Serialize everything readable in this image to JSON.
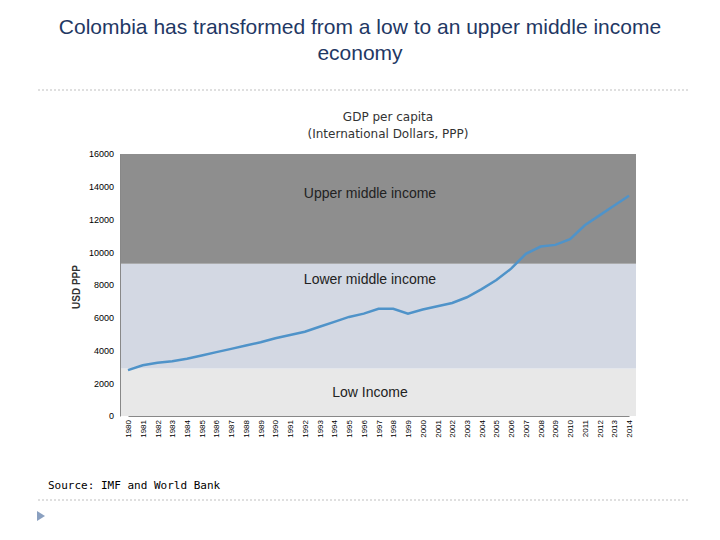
{
  "heading": "Colombia has transformed from a low to an upper middle income economy",
  "source": "Source: IMF and World Bank",
  "chart_data": {
    "type": "line",
    "title": "GDP per capita",
    "subtitle": "(International Dollars, PPP)",
    "y_label": "USD PPP",
    "categories": [
      "1980",
      "1981",
      "1982",
      "1983",
      "1984",
      "1985",
      "1986",
      "1987",
      "1988",
      "1989",
      "1990",
      "1991",
      "1992",
      "1993",
      "1994",
      "1995",
      "1996",
      "1997",
      "1998",
      "1999",
      "2000",
      "2001",
      "2002",
      "2003",
      "2004",
      "2005",
      "2006",
      "2007",
      "2008",
      "2009",
      "2010",
      "2011",
      "2012",
      "2013",
      "2014"
    ],
    "values": [
      2800,
      3100,
      3250,
      3350,
      3500,
      3700,
      3900,
      4100,
      4300,
      4500,
      4750,
      4950,
      5150,
      5450,
      5750,
      6050,
      6250,
      6550,
      6550,
      6250,
      6500,
      6700,
      6900,
      7250,
      7750,
      8300,
      9000,
      9900,
      10350,
      10450,
      10800,
      11650,
      12250,
      12850,
      13450
    ],
    "color": "#4f93c9",
    "bands": [
      {
        "label": "Low Income",
        "from": 0,
        "to": 2900,
        "color": "#e8e8e8"
      },
      {
        "label": "Lower middle income",
        "from": 2900,
        "to": 9300,
        "color": "#d3d8e3"
      },
      {
        "label": "Upper middle income",
        "from": 9300,
        "to": 16000,
        "color": "#8e8e8e"
      }
    ],
    "ylim": [
      0,
      16000
    ],
    "yticks": [
      0,
      2000,
      4000,
      6000,
      8000,
      10000,
      12000,
      14000,
      16000
    ],
    "grid": false
  }
}
